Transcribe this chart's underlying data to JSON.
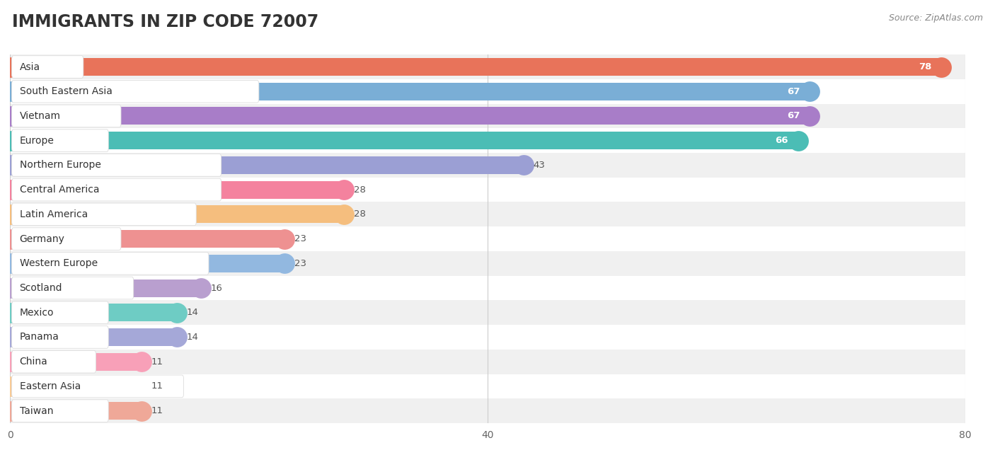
{
  "title": "IMMIGRANTS IN ZIP CODE 72007",
  "source": "Source: ZipAtlas.com",
  "categories": [
    "Asia",
    "South Eastern Asia",
    "Vietnam",
    "Europe",
    "Northern Europe",
    "Central America",
    "Latin America",
    "Germany",
    "Western Europe",
    "Scotland",
    "Mexico",
    "Panama",
    "China",
    "Eastern Asia",
    "Taiwan"
  ],
  "values": [
    78,
    67,
    67,
    66,
    43,
    28,
    28,
    23,
    23,
    16,
    14,
    14,
    11,
    11,
    11
  ],
  "bar_colors": [
    "#E8735A",
    "#7AAED6",
    "#A87DC8",
    "#4BBDB5",
    "#9B9FD4",
    "#F4829E",
    "#F5BE7E",
    "#EE9191",
    "#92B8E0",
    "#B99FCF",
    "#6ECCC4",
    "#A5A8D8",
    "#F8A0B8",
    "#F8CA96",
    "#EFA898"
  ],
  "bg_row_colors": [
    "#F0F0F0",
    "#FFFFFF"
  ],
  "xlim": [
    0,
    80
  ],
  "xticks": [
    0,
    40,
    80
  ],
  "title_fontsize": 17,
  "label_fontsize": 10,
  "value_fontsize": 9.5,
  "bar_height": 0.72,
  "background_color": "#FFFFFF"
}
